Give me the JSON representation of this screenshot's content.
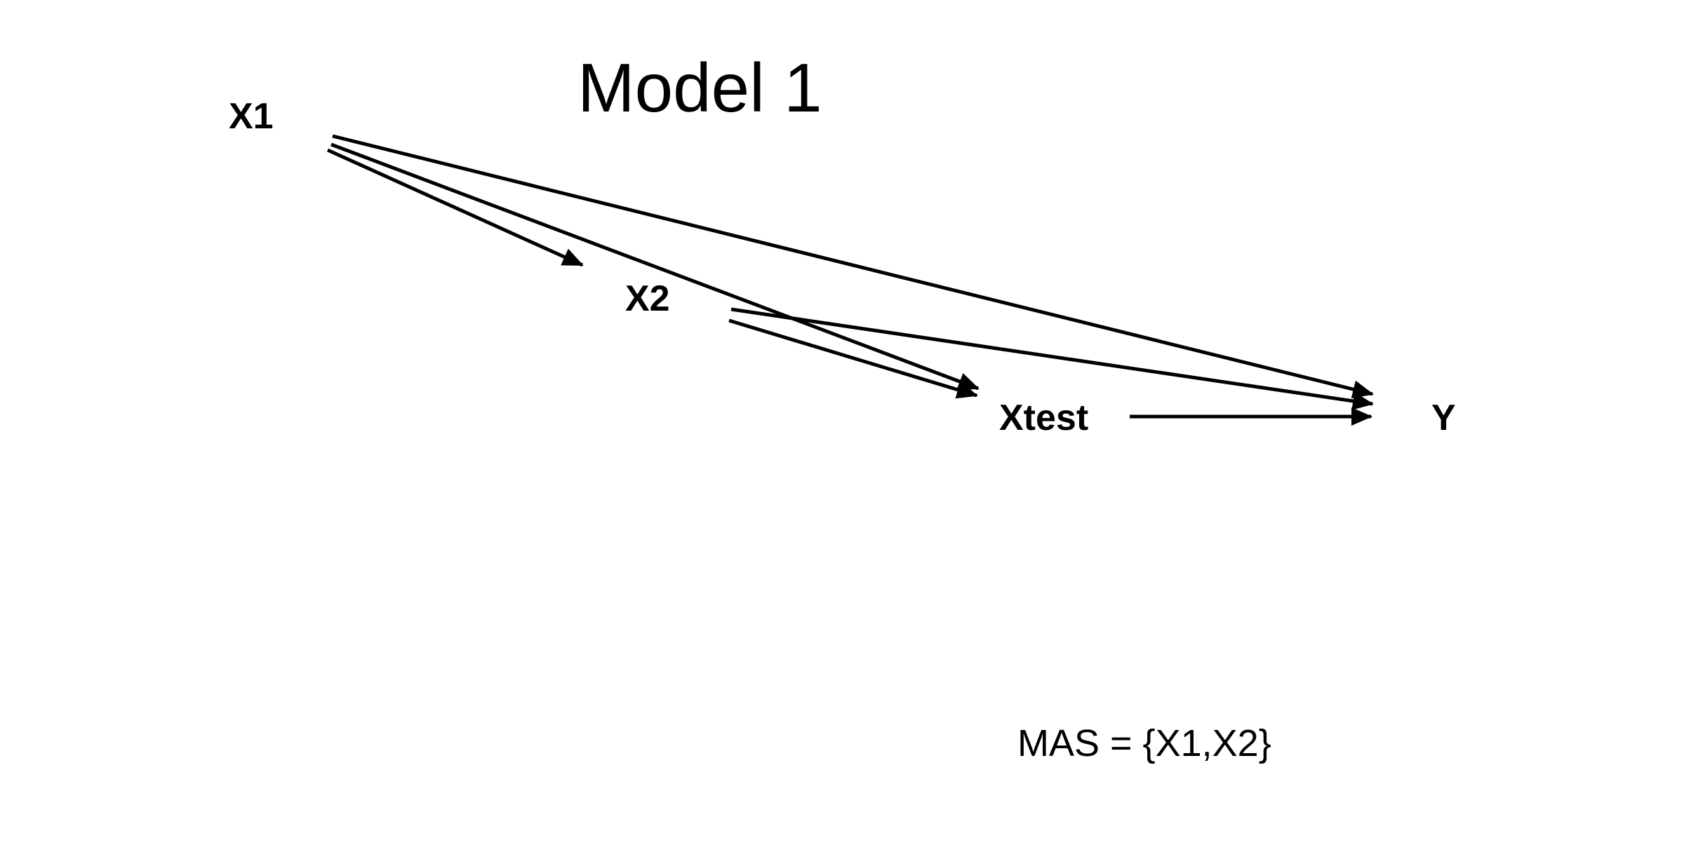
{
  "title": "Model 1",
  "nodes": {
    "x1": "X1",
    "x2": "X2",
    "xtest": "Xtest",
    "y": "Y"
  },
  "edges": [
    {
      "from": "X1",
      "to": "X2"
    },
    {
      "from": "X1",
      "to": "Xtest"
    },
    {
      "from": "X1",
      "to": "Y"
    },
    {
      "from": "X2",
      "to": "Xtest"
    },
    {
      "from": "X2",
      "to": "Y"
    },
    {
      "from": "Xtest",
      "to": "Y"
    }
  ],
  "caption": "MAS = {X1,X2}",
  "colors": {
    "ink": "#000000",
    "background": "#ffffff"
  }
}
